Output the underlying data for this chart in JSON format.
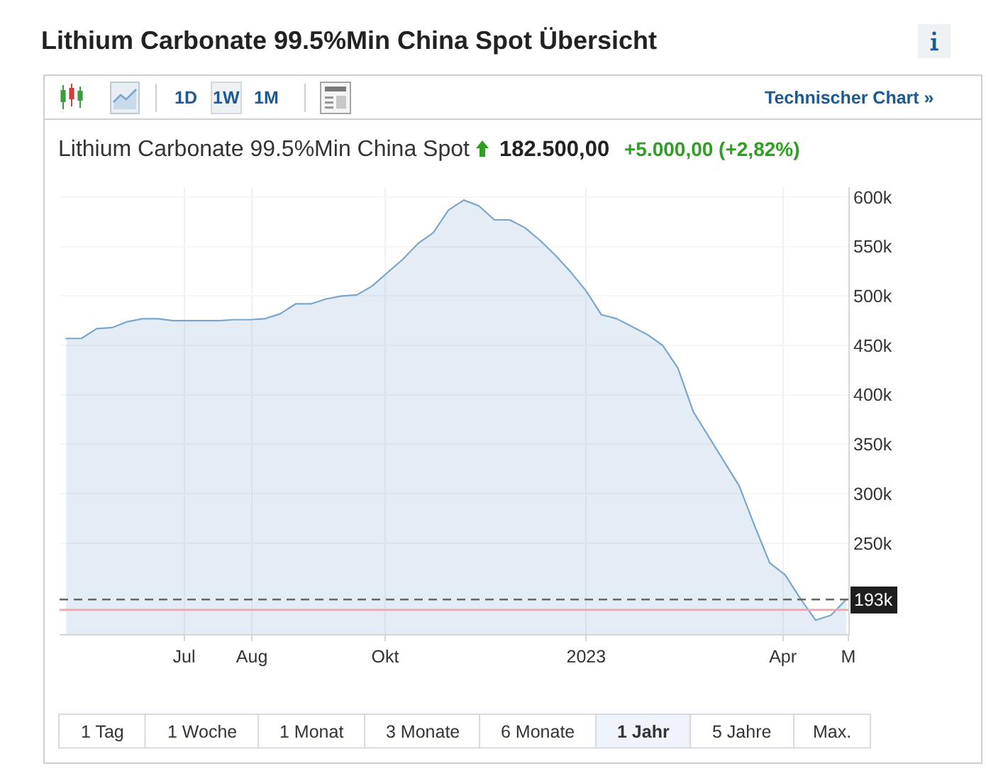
{
  "chart_data": {
    "type": "area",
    "title": "Lithium Carbonate 99.5%Min China Spot Übersicht",
    "subtitle": "Lithium Carbonate 99.5%Min China Spot",
    "annotations": [
      "182.500,00",
      "+5.000,00 (+2,82%)",
      "1D",
      "1W",
      "1M",
      "Technischer Chart »",
      "1 Tag",
      "1 Woche",
      "1 Monat",
      "3 Monate",
      "6 Monate",
      "1 Jahr",
      "5 Jahre",
      "Max."
    ],
    "x": [
      "2022-05-08",
      "2022-05-15",
      "2022-05-22",
      "2022-05-29",
      "2022-06-05",
      "2022-06-12",
      "2022-06-19",
      "2022-06-26",
      "2022-07-03",
      "2022-07-10",
      "2022-07-17",
      "2022-07-24",
      "2022-07-31",
      "2022-08-07",
      "2022-08-14",
      "2022-08-21",
      "2022-08-28",
      "2022-09-04",
      "2022-09-11",
      "2022-09-18",
      "2022-09-25",
      "2022-10-09",
      "2022-10-16",
      "2022-10-23",
      "2022-10-30",
      "2022-11-06",
      "2022-11-13",
      "2022-11-20",
      "2022-11-27",
      "2022-12-04",
      "2022-12-11",
      "2022-12-18",
      "2022-12-25",
      "2023-01-01",
      "2023-01-08",
      "2023-01-15",
      "2023-01-29",
      "2023-02-05",
      "2023-02-12",
      "2023-02-19",
      "2023-02-26",
      "2023-03-05",
      "2023-03-12",
      "2023-03-19",
      "2023-03-26",
      "2023-04-02",
      "2023-04-09",
      "2023-04-16",
      "2023-04-23",
      "2023-04-30"
    ],
    "series": [
      {
        "color": "#7aa6cc",
        "values": [
          457000,
          457000,
          467000,
          468000,
          474000,
          477000,
          477000,
          475000,
          475000,
          475000,
          475000,
          476000,
          476000,
          477000,
          482000,
          492000,
          492000,
          497000,
          500000,
          501000,
          510000,
          537000,
          553000,
          564000,
          587000,
          597000,
          591000,
          577000,
          577000,
          569000,
          556000,
          541000,
          524000,
          505000,
          481000,
          477000,
          461000,
          450000,
          427000,
          383000,
          358000,
          333000,
          308000,
          268000,
          230000,
          218000,
          194000,
          172000,
          177000,
          193000
        ]
      }
    ],
    "xlim": [
      "2022-05-05",
      "2023-05-01"
    ],
    "xticks": [
      {
        "value": "2022-07-01",
        "label": "Jul"
      },
      {
        "value": "2022-08-01",
        "label": "Aug"
      },
      {
        "value": "2022-10-01",
        "label": "Okt"
      },
      {
        "value": "2023-01-01",
        "label": "2023"
      },
      {
        "value": "2023-04-01",
        "label": "Apr"
      },
      {
        "value": "2023-05-01",
        "label": "M"
      }
    ],
    "ylim": [
      158000,
      610000
    ],
    "yticks": [
      {
        "value": 250000,
        "label": "250k"
      },
      {
        "value": 300000,
        "label": "300k"
      },
      {
        "value": 350000,
        "label": "350k"
      },
      {
        "value": 400000,
        "label": "400k"
      },
      {
        "value": 450000,
        "label": "450k"
      },
      {
        "value": 500000,
        "label": "500k"
      },
      {
        "value": 550000,
        "label": "550k"
      },
      {
        "value": 600000,
        "label": "600k"
      }
    ],
    "ref_lines": [
      {
        "axis": "y",
        "value": 193000,
        "label": "193k",
        "color": "#666666",
        "line_style": "dashed"
      },
      {
        "axis": "y",
        "value": 182500,
        "color": "#e9a7ae",
        "line_style": "solid"
      }
    ],
    "grid": true
  }
}
